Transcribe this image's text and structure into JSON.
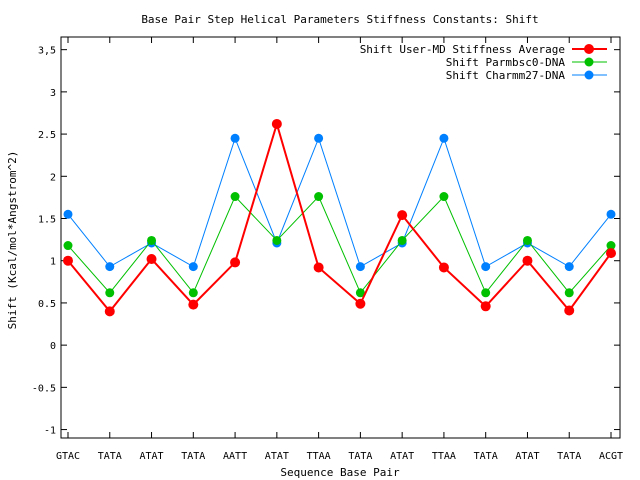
{
  "chart_data": {
    "type": "line",
    "title": "Base Pair Step Helical Parameters Stiffness Constants: Shift",
    "xlabel": "Sequence Base Pair",
    "ylabel": "Shift (Kcal/mol*Angstrom^2)",
    "ylim": [
      -1.1,
      3.65
    ],
    "yticks": [
      -1,
      -0.5,
      0,
      0.5,
      1,
      1.5,
      2,
      2.5,
      3,
      3.5
    ],
    "ytick_labels": [
      "-1",
      "-0.5",
      "0",
      "0.5",
      "1",
      "1.5",
      "2",
      "2.5",
      "3",
      "3,5"
    ],
    "categories": [
      "GTAC",
      "TATA",
      "ATAT",
      "TATA",
      "AATT",
      "ATAT",
      "TTAA",
      "TATA",
      "ATAT",
      "TTAA",
      "TATA",
      "ATAT",
      "TATA",
      "ACGT"
    ],
    "grid": false,
    "legend_position": "top-right",
    "series": [
      {
        "name": "Shift User-MD Stiffness Average",
        "color": "#ff0000",
        "values": [
          1.0,
          0.4,
          1.02,
          0.48,
          0.98,
          2.62,
          0.92,
          0.49,
          1.54,
          0.92,
          0.46,
          1.0,
          0.41,
          1.09
        ]
      },
      {
        "name": "Shift Parmbsc0-DNA",
        "color": "#00c000",
        "values": [
          1.18,
          0.62,
          1.24,
          0.62,
          1.76,
          1.24,
          1.76,
          0.62,
          1.24,
          1.76,
          0.62,
          1.24,
          0.62,
          1.18
        ]
      },
      {
        "name": "Shift Charmm27-DNA",
        "color": "#0080ff",
        "values": [
          1.55,
          0.93,
          1.21,
          0.93,
          2.45,
          1.21,
          2.45,
          0.93,
          1.21,
          2.45,
          0.93,
          1.21,
          0.93,
          1.55
        ]
      }
    ]
  }
}
